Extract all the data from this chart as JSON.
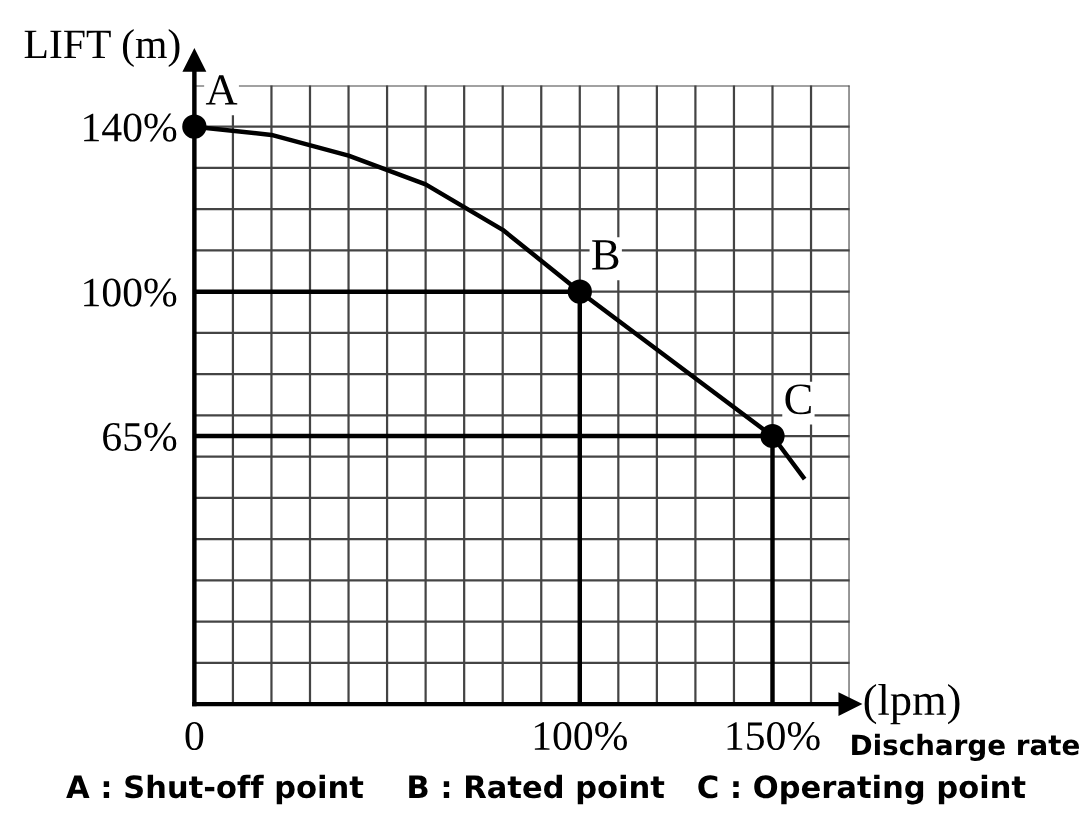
{
  "chart_data": {
    "type": "line",
    "ylabel": "LIFT (m)",
    "xlabel": "(lpm)",
    "x": [
      0,
      20,
      40,
      60,
      80,
      100,
      120,
      140,
      150,
      158
    ],
    "series": [
      {
        "color": "#000000",
        "values": [
          140,
          138,
          133,
          126,
          115,
          100,
          86,
          72,
          65,
          55
        ]
      },
      {
        "type": "line",
        "color": "#000000",
        "x": [
          0,
          100,
          100
        ],
        "values": [
          100,
          100,
          0
        ]
      },
      {
        "type": "line",
        "color": "#000000",
        "x": [
          0,
          150,
          150
        ],
        "values": [
          65,
          65,
          0
        ]
      },
      {
        "type": "scatter",
        "color": "#000000",
        "x": [
          0,
          100,
          150
        ],
        "values": [
          140,
          100,
          65
        ],
        "marker": "circle"
      }
    ],
    "xlim": [
      0,
      170
    ],
    "ylim": [
      0,
      150
    ],
    "xticks": [
      0,
      {
        "value": 10,
        "label": null
      },
      {
        "value": 20,
        "label": null
      },
      {
        "value": 30,
        "label": null
      },
      {
        "value": 40,
        "label": null
      },
      {
        "value": 50,
        "label": null
      },
      {
        "value": 60,
        "label": null
      },
      {
        "value": 70,
        "label": null
      },
      {
        "value": 80,
        "label": null
      },
      {
        "value": 90,
        "label": null
      },
      {
        "value": 100,
        "label": "100%"
      },
      {
        "value": 110,
        "label": null
      },
      {
        "value": 120,
        "label": null
      },
      {
        "value": 130,
        "label": null
      },
      {
        "value": 140,
        "label": null
      },
      {
        "value": 150,
        "label": "150%"
      },
      {
        "value": 160,
        "label": null
      },
      {
        "value": 170,
        "label": null
      }
    ],
    "yticks": [
      {
        "value": 10,
        "label": null
      },
      {
        "value": 20,
        "label": null
      },
      {
        "value": 30,
        "label": null
      },
      {
        "value": 40,
        "label": null
      },
      {
        "value": 50,
        "label": null
      },
      {
        "value": 60,
        "label": null
      },
      {
        "value": 65,
        "label": "65%"
      },
      {
        "value": 70,
        "label": null
      },
      {
        "value": 80,
        "label": null
      },
      {
        "value": 90,
        "label": null
      },
      {
        "value": 100,
        "label": "100%"
      },
      {
        "value": 110,
        "label": null
      },
      {
        "value": 120,
        "label": null
      },
      {
        "value": 130,
        "label": null
      },
      {
        "value": 140,
        "label": "140%"
      },
      {
        "value": 150,
        "label": null
      }
    ],
    "grid": true,
    "line_style": "solid",
    "annotations": [
      {
        "text": "A",
        "x": 0,
        "y": 140
      },
      {
        "text": "B",
        "x": 100,
        "y": 100
      },
      {
        "text": "C",
        "x": 150,
        "y": 65
      },
      "Discharge rate",
      "A : Shut-off point    B : Rated point   C : Operating point"
    ]
  }
}
